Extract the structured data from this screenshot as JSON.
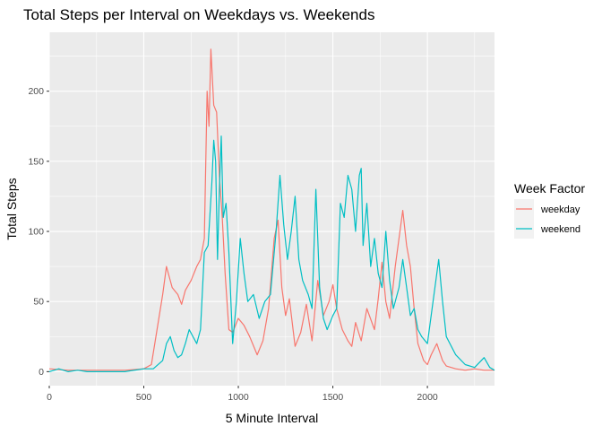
{
  "chart_data": {
    "type": "line",
    "title": "Total Steps per Interval on Weekdays vs. Weekends",
    "xlabel": "5 Minute Interval",
    "ylabel": "Total Steps",
    "xlim": [
      0,
      2355
    ],
    "ylim": [
      -10,
      242
    ],
    "x_ticks": [
      0,
      500,
      1000,
      1500,
      2000
    ],
    "y_ticks": [
      0,
      50,
      100,
      150,
      200
    ],
    "legend": {
      "title": "Week Factor",
      "position": "right"
    },
    "grid": true,
    "series": [
      {
        "name": "weekday",
        "color": "#F8766D",
        "points": [
          [
            0,
            2
          ],
          [
            100,
            1
          ],
          [
            200,
            1
          ],
          [
            300,
            1
          ],
          [
            400,
            1
          ],
          [
            500,
            2
          ],
          [
            540,
            5
          ],
          [
            570,
            30
          ],
          [
            600,
            55
          ],
          [
            620,
            75
          ],
          [
            650,
            60
          ],
          [
            680,
            55
          ],
          [
            700,
            48
          ],
          [
            720,
            58
          ],
          [
            750,
            65
          ],
          [
            780,
            75
          ],
          [
            800,
            80
          ],
          [
            820,
            95
          ],
          [
            835,
            200
          ],
          [
            845,
            175
          ],
          [
            855,
            230
          ],
          [
            870,
            190
          ],
          [
            885,
            185
          ],
          [
            900,
            140
          ],
          [
            915,
            110
          ],
          [
            930,
            70
          ],
          [
            950,
            30
          ],
          [
            970,
            28
          ],
          [
            1000,
            38
          ],
          [
            1030,
            33
          ],
          [
            1060,
            25
          ],
          [
            1100,
            12
          ],
          [
            1130,
            22
          ],
          [
            1160,
            45
          ],
          [
            1190,
            95
          ],
          [
            1210,
            108
          ],
          [
            1230,
            60
          ],
          [
            1250,
            40
          ],
          [
            1270,
            52
          ],
          [
            1300,
            18
          ],
          [
            1330,
            28
          ],
          [
            1360,
            48
          ],
          [
            1390,
            22
          ],
          [
            1420,
            65
          ],
          [
            1450,
            40
          ],
          [
            1480,
            50
          ],
          [
            1500,
            62
          ],
          [
            1520,
            45
          ],
          [
            1550,
            30
          ],
          [
            1580,
            22
          ],
          [
            1600,
            18
          ],
          [
            1620,
            35
          ],
          [
            1650,
            22
          ],
          [
            1680,
            45
          ],
          [
            1720,
            30
          ],
          [
            1740,
            52
          ],
          [
            1760,
            78
          ],
          [
            1780,
            50
          ],
          [
            1800,
            38
          ],
          [
            1830,
            75
          ],
          [
            1850,
            95
          ],
          [
            1870,
            115
          ],
          [
            1890,
            90
          ],
          [
            1910,
            75
          ],
          [
            1930,
            45
          ],
          [
            1950,
            20
          ],
          [
            1980,
            8
          ],
          [
            2000,
            5
          ],
          [
            2020,
            12
          ],
          [
            2050,
            20
          ],
          [
            2080,
            8
          ],
          [
            2100,
            4
          ],
          [
            2150,
            2
          ],
          [
            2200,
            1
          ],
          [
            2250,
            2
          ],
          [
            2300,
            1
          ],
          [
            2355,
            1
          ]
        ]
      },
      {
        "name": "weekend",
        "color": "#00BFC4",
        "points": [
          [
            0,
            0
          ],
          [
            50,
            2
          ],
          [
            100,
            0
          ],
          [
            150,
            1
          ],
          [
            200,
            0
          ],
          [
            300,
            0
          ],
          [
            400,
            0
          ],
          [
            500,
            2
          ],
          [
            550,
            2
          ],
          [
            600,
            8
          ],
          [
            620,
            20
          ],
          [
            640,
            25
          ],
          [
            660,
            15
          ],
          [
            680,
            10
          ],
          [
            700,
            12
          ],
          [
            720,
            20
          ],
          [
            740,
            30
          ],
          [
            760,
            25
          ],
          [
            780,
            20
          ],
          [
            800,
            30
          ],
          [
            820,
            85
          ],
          [
            840,
            90
          ],
          [
            860,
            135
          ],
          [
            870,
            165
          ],
          [
            880,
            150
          ],
          [
            890,
            80
          ],
          [
            900,
            130
          ],
          [
            910,
            168
          ],
          [
            920,
            110
          ],
          [
            935,
            120
          ],
          [
            950,
            85
          ],
          [
            970,
            20
          ],
          [
            990,
            50
          ],
          [
            1010,
            95
          ],
          [
            1030,
            70
          ],
          [
            1050,
            50
          ],
          [
            1080,
            55
          ],
          [
            1110,
            38
          ],
          [
            1140,
            50
          ],
          [
            1170,
            55
          ],
          [
            1200,
            100
          ],
          [
            1220,
            140
          ],
          [
            1240,
            105
          ],
          [
            1260,
            80
          ],
          [
            1280,
            100
          ],
          [
            1300,
            125
          ],
          [
            1320,
            80
          ],
          [
            1340,
            65
          ],
          [
            1370,
            55
          ],
          [
            1390,
            45
          ],
          [
            1410,
            130
          ],
          [
            1430,
            60
          ],
          [
            1450,
            38
          ],
          [
            1470,
            30
          ],
          [
            1500,
            40
          ],
          [
            1520,
            45
          ],
          [
            1540,
            120
          ],
          [
            1560,
            110
          ],
          [
            1580,
            140
          ],
          [
            1600,
            130
          ],
          [
            1620,
            100
          ],
          [
            1640,
            140
          ],
          [
            1650,
            145
          ],
          [
            1660,
            90
          ],
          [
            1680,
            120
          ],
          [
            1700,
            75
          ],
          [
            1720,
            95
          ],
          [
            1740,
            70
          ],
          [
            1760,
            60
          ],
          [
            1780,
            100
          ],
          [
            1800,
            65
          ],
          [
            1820,
            45
          ],
          [
            1850,
            60
          ],
          [
            1870,
            80
          ],
          [
            1890,
            60
          ],
          [
            1910,
            40
          ],
          [
            1930,
            45
          ],
          [
            1950,
            30
          ],
          [
            1970,
            25
          ],
          [
            2000,
            20
          ],
          [
            2020,
            40
          ],
          [
            2040,
            60
          ],
          [
            2060,
            80
          ],
          [
            2080,
            50
          ],
          [
            2100,
            25
          ],
          [
            2150,
            12
          ],
          [
            2200,
            5
          ],
          [
            2250,
            3
          ],
          [
            2300,
            10
          ],
          [
            2330,
            3
          ],
          [
            2355,
            1
          ]
        ]
      }
    ]
  }
}
